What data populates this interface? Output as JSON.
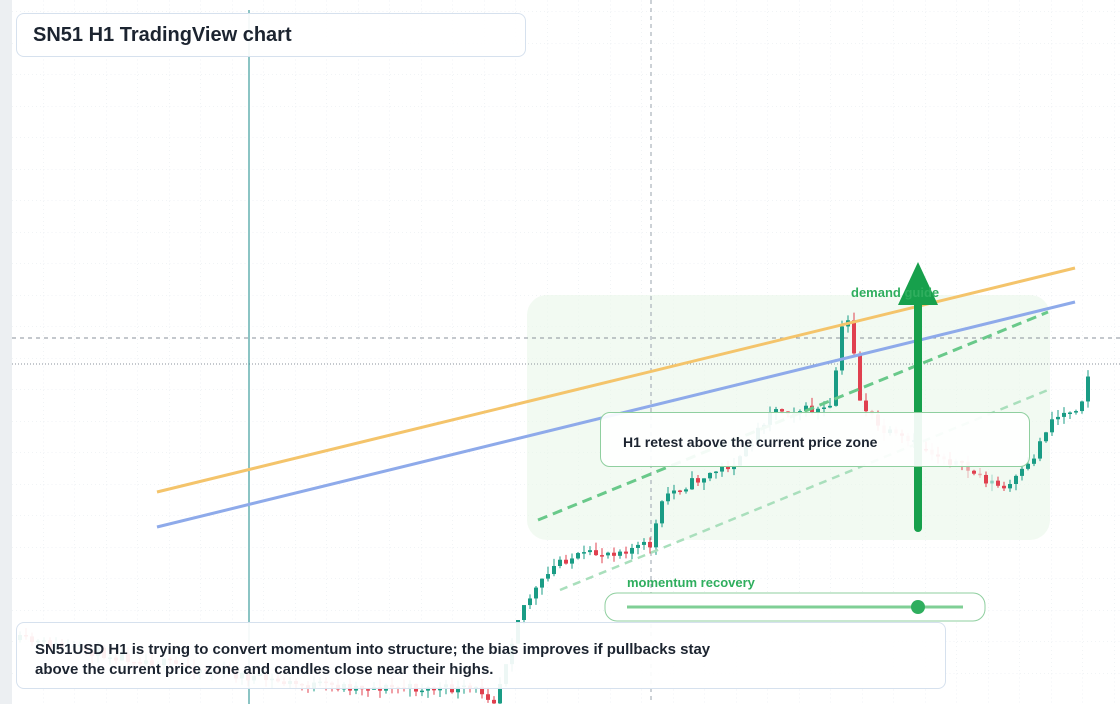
{
  "header": {
    "title": "SN51 H1 TradingView chart"
  },
  "annotations": {
    "demand": "demand guide",
    "retest": "H1 retest above the current price zone",
    "momentum": "momentum recovery"
  },
  "note": {
    "lines": [
      "SN51USD H1 is trying to convert momentum into structure; the bias improves if pullbacks stay",
      "above the current price zone and candles close near their highs."
    ]
  }
}
